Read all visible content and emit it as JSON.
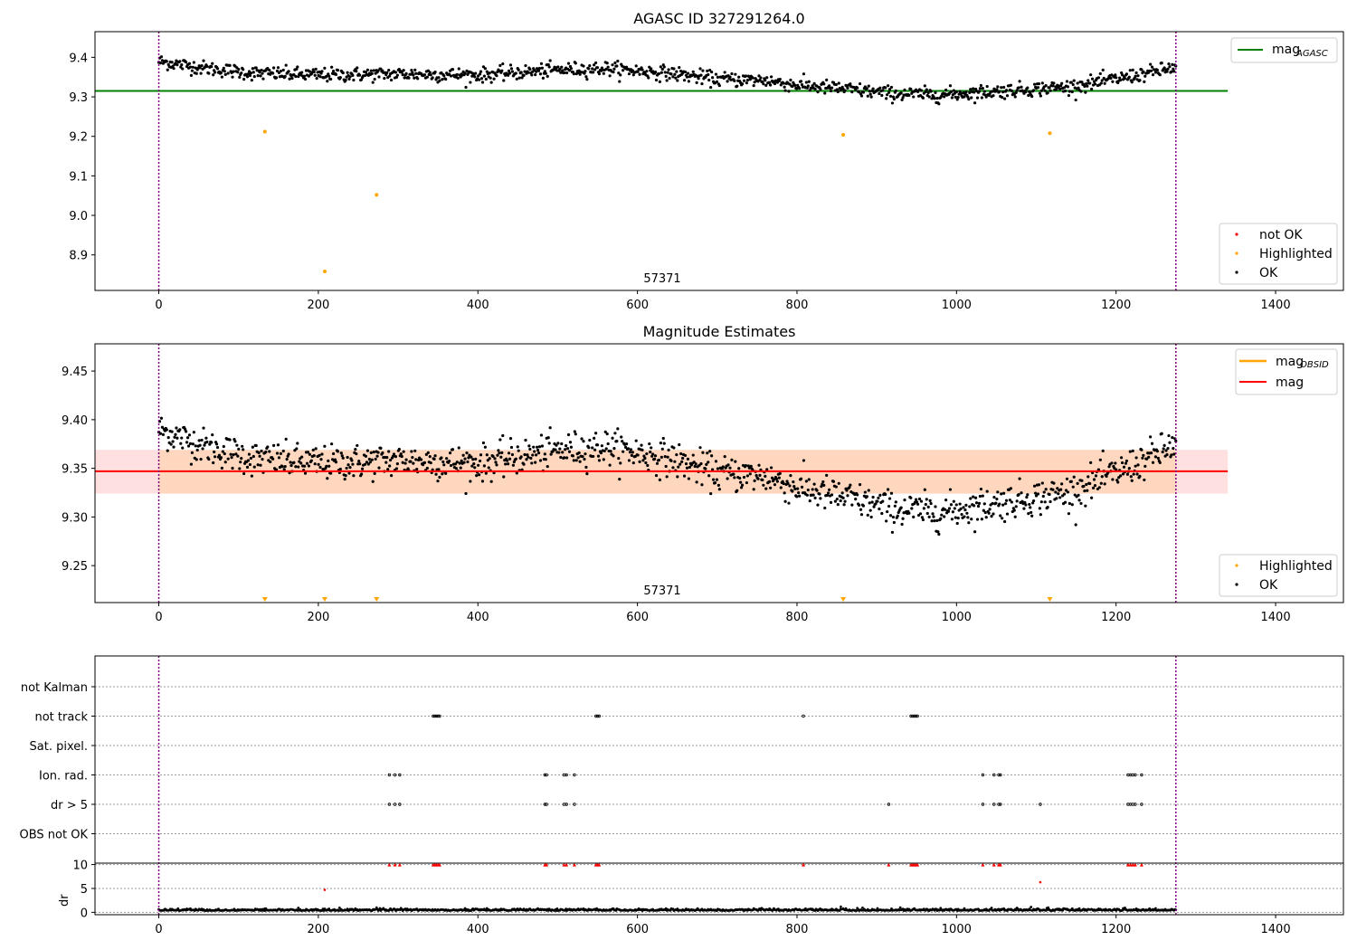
{
  "chart_data": [
    {
      "type": "scatter",
      "title": "AGASC ID 327291264.0",
      "xlabel": "",
      "ylabel": "",
      "xlim": [
        -80,
        1485
      ],
      "ylim": [
        8.81,
        9.465
      ],
      "xticks": [
        "0",
        "200",
        "400",
        "600",
        "800",
        "1000",
        "1200",
        "1400"
      ],
      "yticks": [
        "8.9",
        "9.0",
        "9.1",
        "9.2",
        "9.3",
        "9.4"
      ],
      "annotation": "57371",
      "mag_agasc": 9.315,
      "vlines": [
        0,
        1275
      ],
      "ok_series": {
        "name": "OK",
        "color": "#000000",
        "x_range": [
          0,
          1275
        ],
        "trend_x": [
          0,
          60,
          120,
          200,
          300,
          400,
          500,
          560,
          640,
          700,
          760,
          800,
          860,
          920,
          980,
          1020,
          1080,
          1140,
          1200,
          1240,
          1275
        ],
        "trend_y": [
          9.39,
          9.372,
          9.36,
          9.355,
          9.358,
          9.355,
          9.368,
          9.372,
          9.36,
          9.345,
          9.342,
          9.33,
          9.32,
          9.308,
          9.305,
          9.31,
          9.318,
          9.325,
          9.345,
          9.36,
          9.375
        ],
        "spread": 0.009
      },
      "highlighted_series": {
        "name": "Highlighted",
        "color": "#ffa500",
        "x": [
          133,
          208,
          273,
          858,
          1117
        ],
        "y": [
          9.212,
          8.858,
          9.052,
          9.204,
          9.208
        ]
      },
      "legend_upper": [
        {
          "label": "mag",
          "sub": "AGASC",
          "color": "#008000"
        }
      ],
      "legend_lower": [
        {
          "label": "not OK",
          "color": "#ff0000"
        },
        {
          "label": "Highlighted",
          "color": "#ffa500"
        },
        {
          "label": "OK",
          "color": "#000000"
        }
      ]
    },
    {
      "type": "scatter",
      "title": "Magnitude Estimates",
      "xlabel": "",
      "ylabel": "",
      "xlim": [
        -80,
        1485
      ],
      "ylim": [
        9.212,
        9.478
      ],
      "xticks": [
        "0",
        "200",
        "400",
        "600",
        "800",
        "1000",
        "1200",
        "1400"
      ],
      "yticks": [
        "9.25",
        "9.30",
        "9.35",
        "9.40",
        "9.45"
      ],
      "annotation": "57371",
      "mag": 9.347,
      "mag_band": [
        9.324,
        9.369
      ],
      "vlines": [
        0,
        1275
      ],
      "ok_series": {
        "name": "OK",
        "color": "#000000",
        "x_range": [
          0,
          1275
        ],
        "trend_x": [
          0,
          60,
          120,
          200,
          300,
          400,
          500,
          560,
          640,
          700,
          760,
          800,
          860,
          920,
          980,
          1020,
          1080,
          1140,
          1200,
          1240,
          1275
        ],
        "trend_y": [
          9.39,
          9.372,
          9.36,
          9.355,
          9.358,
          9.355,
          9.368,
          9.372,
          9.36,
          9.345,
          9.342,
          9.33,
          9.32,
          9.308,
          9.305,
          9.31,
          9.318,
          9.325,
          9.345,
          9.36,
          9.375
        ],
        "spread": 0.009
      },
      "highlighted_markers_x": [
        133,
        208,
        273,
        858,
        1117
      ],
      "legend_upper": [
        {
          "label": "mag",
          "sub": "OBSID",
          "color": "#ffa500"
        },
        {
          "label": "mag",
          "sub": "",
          "color": "#ff0000"
        }
      ],
      "legend_lower": [
        {
          "label": "Highlighted",
          "color": "#ffa500"
        },
        {
          "label": "OK",
          "color": "#000000"
        }
      ]
    },
    {
      "type": "scatter",
      "title": "",
      "xlim": [
        -80,
        1485
      ],
      "xticks": [
        "0",
        "200",
        "400",
        "600",
        "800",
        "1000",
        "1200",
        "1400"
      ],
      "vlines": [
        0,
        1275
      ],
      "flag_rows": [
        "not Kalman",
        "not track",
        "Sat. pixel.",
        "Ion. rad.",
        "dr > 5",
        "OBS not OK"
      ],
      "flag_points": {
        "not track": [
          344,
          346,
          348,
          350,
          352,
          548,
          550,
          552,
          808,
          943,
          945,
          947,
          949,
          951
        ],
        "Ion. rad.": [
          289,
          296,
          302,
          484,
          486,
          508,
          511,
          521,
          1033,
          1047,
          1053,
          1055,
          1215,
          1218,
          1221,
          1224,
          1232
        ],
        "dr > 5": [
          289,
          296,
          302,
          484,
          486,
          508,
          511,
          521,
          915,
          1033,
          1047,
          1053,
          1055,
          1105,
          1215,
          1218,
          1221,
          1224,
          1232
        ]
      },
      "dr": {
        "ylabel": "dr",
        "yticks": [
          "0",
          "5",
          "10"
        ],
        "ylim": [
          -0.5,
          10.3
        ],
        "clipped_x": [
          289,
          296,
          302,
          344,
          346,
          348,
          350,
          352,
          484,
          486,
          508,
          511,
          521,
          548,
          550,
          552,
          808,
          915,
          943,
          945,
          947,
          949,
          951,
          1033,
          1047,
          1053,
          1055,
          1215,
          1218,
          1221,
          1224,
          1232
        ],
        "outliers": [
          [
            208,
            4.7
          ],
          [
            1105,
            6.3
          ],
          [
            273,
            1.0
          ],
          [
            133,
            0.8
          ],
          [
            855,
            1.2
          ],
          [
            1115,
            1.0
          ]
        ],
        "baseline": 0.35
      }
    }
  ]
}
